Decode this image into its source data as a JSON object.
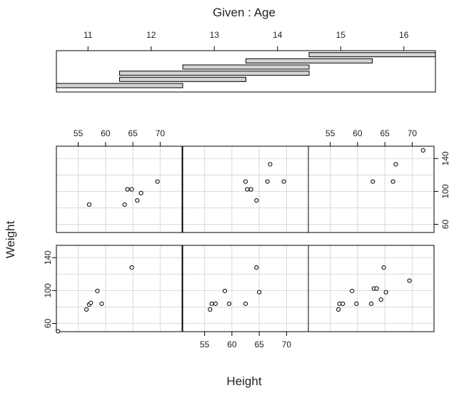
{
  "chart_data": {
    "type": "scatter",
    "layout": "coplot",
    "given": {
      "title": "Given : Age",
      "ticks": [
        11,
        12,
        13,
        14,
        15,
        16
      ],
      "xlim": [
        10.5,
        16.5
      ],
      "intervals": [
        [
          10.5,
          12.5
        ],
        [
          11.5,
          13.5
        ],
        [
          11.5,
          14.5
        ],
        [
          12.5,
          14.5
        ],
        [
          13.5,
          15.5
        ],
        [
          14.5,
          16.5
        ]
      ]
    },
    "xlabel": "Height",
    "ylabel": "Weight",
    "xlim": [
      51,
      74
    ],
    "ylim": [
      50,
      155
    ],
    "xgrid": [
      55,
      60,
      65,
      70
    ],
    "ygrid": [
      60,
      80,
      100,
      120,
      140
    ],
    "x_ticks": [
      55,
      60,
      65,
      70
    ],
    "y_ticks": [
      60,
      100,
      140
    ],
    "panels": [
      {
        "name": "age-10.5-12.5",
        "row": 2,
        "col": 1,
        "x": [
          51.3,
          56.5,
          57.0,
          57.3,
          58.5,
          59.3,
          64.8
        ],
        "y": [
          50.5,
          77.0,
          83.0,
          85.0,
          99.5,
          84.0,
          128.0
        ]
      },
      {
        "name": "age-11.5-13.5",
        "row": 2,
        "col": 2,
        "x": [
          56.0,
          56.3,
          57.0,
          58.7,
          59.5,
          62.5,
          64.5,
          65.0
        ],
        "y": [
          77.0,
          84.0,
          84.0,
          99.5,
          84.0,
          84.0,
          128.0,
          98.0
        ]
      },
      {
        "name": "age-11.5-14.5",
        "row": 2,
        "col": 3,
        "x": [
          56.5,
          56.7,
          57.3,
          59.0,
          59.8,
          62.5,
          63.0,
          63.5,
          64.3,
          64.8,
          65.2,
          69.5
        ],
        "y": [
          77.0,
          84.0,
          84.0,
          99.5,
          84.0,
          84.0,
          102.5,
          102.5,
          89.0,
          128.0,
          98.0,
          112.0
        ]
      },
      {
        "name": "age-12.5-14.5",
        "row": 1,
        "col": 1,
        "x": [
          57.0,
          63.5,
          64.0,
          64.8,
          65.8,
          66.5,
          69.5
        ],
        "y": [
          84.0,
          84.0,
          102.5,
          102.5,
          89.0,
          98.0,
          112.0
        ]
      },
      {
        "name": "age-13.5-15.5",
        "row": 1,
        "col": 2,
        "x": [
          62.5,
          62.8,
          63.5,
          64.5,
          66.5,
          67.0,
          69.5
        ],
        "y": [
          112.0,
          102.5,
          102.5,
          89.0,
          112.0,
          133.0,
          112.0
        ]
      },
      {
        "name": "age-14.5-16.5",
        "row": 1,
        "col": 3,
        "x": [
          62.8,
          66.5,
          67.0,
          72.0
        ],
        "y": [
          112.0,
          112.0,
          133.0,
          150.0
        ]
      }
    ]
  }
}
